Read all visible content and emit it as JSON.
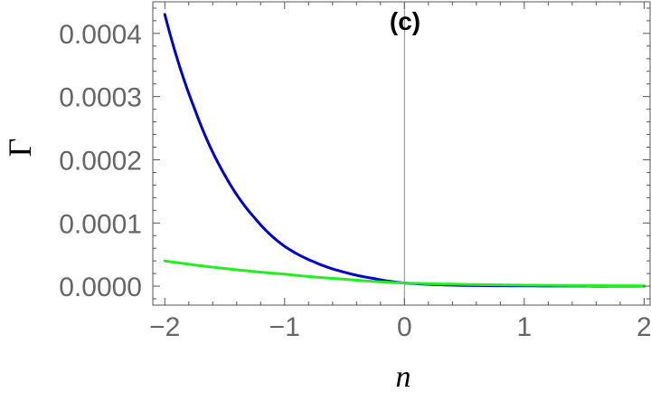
{
  "chart_data": {
    "type": "line",
    "title": "",
    "panel_label": "(c)",
    "xlabel": "n",
    "ylabel": "Γ",
    "xlim": [
      -2.1,
      2.05
    ],
    "ylim": [
      -3e-05,
      0.00045
    ],
    "x_ticks": [
      -2,
      -1,
      0,
      1,
      2
    ],
    "x_tick_labels": [
      "−2",
      "−1",
      "0",
      "1",
      "2"
    ],
    "y_ticks": [
      0,
      0.0001,
      0.0002,
      0.0003,
      0.0004
    ],
    "y_tick_labels": [
      "0.0000",
      "0.0001",
      "0.0002",
      "0.0003",
      "0.0004"
    ],
    "grid": false,
    "reference_line_x": 0,
    "series": [
      {
        "color": "#0000cc",
        "x": [
          -2,
          -1.75,
          -1.5,
          -1.25,
          -1,
          -0.75,
          -0.5,
          -0.25,
          0,
          0.5,
          1,
          1.5,
          2
        ],
        "y": [
          0.00043,
          0.00028,
          0.000176,
          0.000108,
          6.3e-05,
          3.8e-05,
          2.2e-05,
          1.2e-05,
          5e-06,
          1.2e-06,
          4e-07,
          2e-07,
          1e-07
        ]
      },
      {
        "color": "#22ee22",
        "x": [
          -2,
          -1.5,
          -1,
          -0.5,
          0,
          0.5,
          1,
          1.5,
          2
        ],
        "y": [
          4e-05,
          2.8e-05,
          1.9e-05,
          1.1e-05,
          5e-06,
          2.8e-06,
          1.6e-06,
          9e-07,
          5e-07
        ]
      }
    ]
  }
}
